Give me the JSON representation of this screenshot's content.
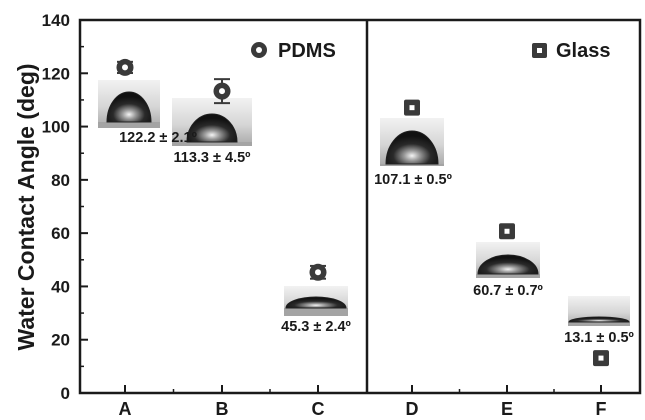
{
  "chart_data": {
    "type": "scatter",
    "title": "",
    "xlabel": "",
    "ylabel": "Water Contact Angle (deg)",
    "categories": [
      "A",
      "B",
      "C",
      "D",
      "E",
      "F"
    ],
    "ylim": [
      0,
      140
    ],
    "yticks": [
      0,
      20,
      40,
      60,
      80,
      100,
      120,
      140
    ],
    "grid": false,
    "divider_after_category": "C",
    "series": [
      {
        "name": "PDMS",
        "marker": "circle",
        "categories": [
          "A",
          "B",
          "C"
        ],
        "values": [
          122.2,
          113.3,
          45.3
        ],
        "errors": [
          2.1,
          4.5,
          2.4
        ],
        "annotations": [
          "122.2 ± 2.1º",
          "113.3 ± 4.5º",
          "45.3 ± 2.4º"
        ]
      },
      {
        "name": "Glass",
        "marker": "square",
        "categories": [
          "D",
          "E",
          "F"
        ],
        "values": [
          107.1,
          60.7,
          13.1
        ],
        "errors": [
          0.5,
          0.7,
          0.5
        ],
        "annotations": [
          "107.1 ± 0.5º",
          "60.7 ± 0.7º",
          "13.1 ± 0.5º"
        ]
      }
    ],
    "colors": {
      "marker": "#3a3a3a",
      "axis": "#1a1a1a",
      "photo_top": "#eaeaea",
      "photo_bottom": "#b8b8b8",
      "droplet": "#202020"
    }
  }
}
